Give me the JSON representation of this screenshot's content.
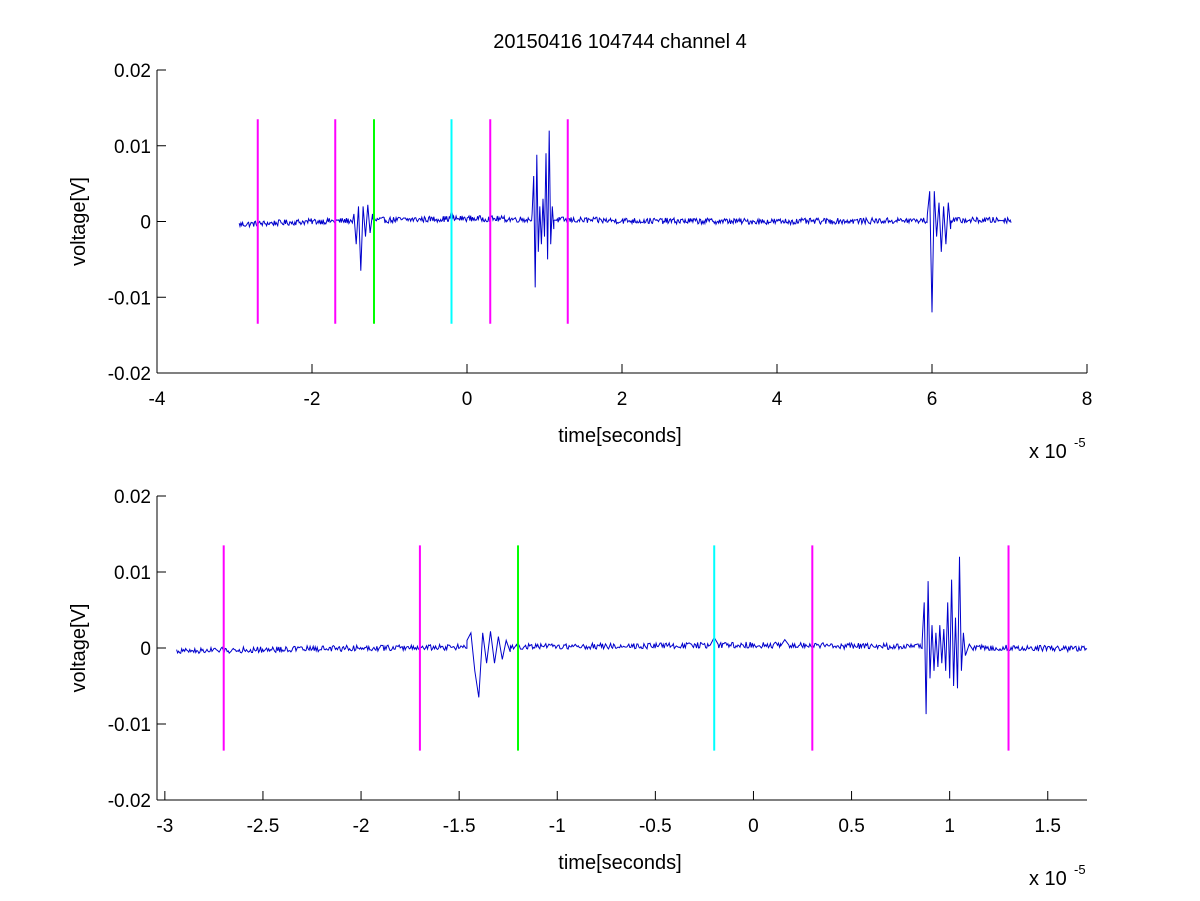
{
  "figure": {
    "title": "20150416 104744 channel 4"
  },
  "chart_data": [
    {
      "type": "line",
      "title": "20150416 104744 channel 4",
      "xlabel": "time[seconds]",
      "ylabel": "voltage[V]",
      "x_multiplier": "x 10",
      "x_multiplier_exponent": "-5",
      "xlim": [
        -4,
        8
      ],
      "ylim": [
        -0.02,
        0.02
      ],
      "x_ticks": [
        -4,
        -2,
        0,
        2,
        4,
        6,
        8
      ],
      "x_tick_labels": [
        "-4",
        "-2",
        "0",
        "2",
        "4",
        "6",
        "8"
      ],
      "y_ticks": [
        0.02,
        0.01,
        0,
        -0.01,
        -0.02
      ],
      "y_tick_labels": [
        "0.02",
        "0.01",
        "0",
        "-0.01",
        "-0.02"
      ],
      "grid": false,
      "series_color": "#0000cc",
      "signal": {
        "x_start": -2.94,
        "x_end": 7.02,
        "baseline": [
          [
            -2.94,
            -0.0004
          ],
          [
            -2.0,
            0.0
          ],
          [
            0.0,
            0.0004
          ],
          [
            2.0,
            0.0001
          ],
          [
            4.0,
            0.0
          ],
          [
            7.02,
            0.0002
          ]
        ],
        "noise_amplitude": 0.0004,
        "bursts": [
          {
            "x": [
              -1.46,
              -1.43,
              -1.4,
              -1.37,
              -1.34,
              -1.31,
              -1.28,
              -1.25,
              -1.22
            ],
            "y": [
              0.001,
              -0.003,
              0.002,
              -0.0065,
              0.002,
              -0.002,
              0.0022,
              -0.0015,
              0.001
            ]
          },
          {
            "x": [
              0.84,
              0.86,
              0.88,
              0.9,
              0.92,
              0.94,
              0.96,
              0.98,
              1.0,
              1.02,
              1.04,
              1.06,
              1.08,
              1.1,
              1.12
            ],
            "y": [
              0.001,
              0.006,
              -0.0087,
              0.0088,
              -0.004,
              0.002,
              -0.003,
              0.003,
              -0.002,
              0.009,
              -0.005,
              0.012,
              -0.003,
              0.002,
              -0.001
            ]
          },
          {
            "x": [
              5.94,
              5.97,
              6.0,
              6.03,
              6.06,
              6.09,
              6.12,
              6.15,
              6.18,
              6.21,
              6.24
            ],
            "y": [
              0.001,
              0.004,
              -0.012,
              0.004,
              -0.002,
              0.0025,
              -0.004,
              0.002,
              -0.003,
              0.0025,
              -0.001
            ]
          },
          {
            "x": [
              -0.22,
              -0.2,
              -0.18
            ],
            "y": [
              0.0004,
              0.0016,
              0.0005
            ]
          }
        ]
      },
      "markers": [
        {
          "x": -2.7,
          "color": "#ff00ff"
        },
        {
          "x": -1.7,
          "color": "#ff00ff"
        },
        {
          "x": -1.2,
          "color": "#00ff00"
        },
        {
          "x": -0.2,
          "color": "#00ffff"
        },
        {
          "x": 0.3,
          "color": "#ff00ff"
        },
        {
          "x": 1.3,
          "color": "#ff00ff"
        }
      ],
      "marker_ylim": [
        -0.0135,
        0.0135
      ]
    },
    {
      "type": "line",
      "xlabel": "time[seconds]",
      "ylabel": "voltage[V]",
      "x_multiplier": "x 10",
      "x_multiplier_exponent": "-5",
      "xlim": [
        -3.04,
        1.7
      ],
      "ylim": [
        -0.02,
        0.02
      ],
      "x_ticks": [
        -3,
        -2.5,
        -2,
        -1.5,
        -1,
        -0.5,
        0,
        0.5,
        1,
        1.5
      ],
      "x_tick_labels": [
        "-3",
        "-2.5",
        "-2",
        "-1.5",
        "-1",
        "-0.5",
        "0",
        "0.5",
        "1",
        "1.5"
      ],
      "y_ticks": [
        0.02,
        0.01,
        0,
        -0.01,
        -0.02
      ],
      "y_tick_labels": [
        "0.02",
        "0.01",
        "0",
        "-0.01",
        "-0.02"
      ],
      "grid": false,
      "series_color": "#0000cc",
      "signal": {
        "x_start": -2.94,
        "x_end": 1.7,
        "baseline": [
          [
            -2.94,
            -0.0004
          ],
          [
            -2.0,
            0.0
          ],
          [
            -0.5,
            0.0003
          ],
          [
            0.0,
            0.0004
          ],
          [
            1.7,
            -0.0001
          ]
        ],
        "noise_amplitude": 0.0004,
        "bursts": [
          {
            "x": [
              -1.46,
              -1.44,
              -1.42,
              -1.4,
              -1.38,
              -1.36,
              -1.34,
              -1.32,
              -1.3,
              -1.28,
              -1.26,
              -1.24
            ],
            "y": [
              0.001,
              0.002,
              -0.003,
              -0.0065,
              0.002,
              -0.002,
              0.0022,
              -0.002,
              0.0015,
              -0.0015,
              0.001,
              -0.0005
            ]
          },
          {
            "x": [
              0.86,
              0.87,
              0.88,
              0.89,
              0.9,
              0.91,
              0.92,
              0.93,
              0.94,
              0.95,
              0.96,
              0.97,
              0.98,
              0.99,
              1.0,
              1.01,
              1.02,
              1.03,
              1.04,
              1.05,
              1.06,
              1.07,
              1.08,
              1.1,
              1.12
            ],
            "y": [
              0.001,
              0.006,
              -0.0087,
              0.0088,
              -0.004,
              0.003,
              -0.003,
              0.002,
              -0.0025,
              0.003,
              -0.002,
              0.0025,
              -0.003,
              0.006,
              -0.004,
              0.009,
              -0.005,
              0.004,
              -0.0053,
              0.012,
              -0.003,
              0.002,
              -0.001,
              0.0005,
              -0.0003
            ]
          },
          {
            "x": [
              -0.22,
              -0.2,
              -0.18
            ],
            "y": [
              0.0004,
              0.0014,
              0.0005
            ]
          },
          {
            "x": [
              0.14,
              0.16,
              0.18
            ],
            "y": [
              0.0003,
              0.0011,
              0.0004
            ]
          }
        ]
      },
      "markers": [
        {
          "x": -2.7,
          "color": "#ff00ff"
        },
        {
          "x": -1.7,
          "color": "#ff00ff"
        },
        {
          "x": -1.2,
          "color": "#00ff00"
        },
        {
          "x": -0.2,
          "color": "#00ffff"
        },
        {
          "x": 0.3,
          "color": "#ff00ff"
        },
        {
          "x": 1.3,
          "color": "#ff00ff"
        }
      ],
      "marker_ylim": [
        -0.0135,
        0.0135
      ]
    }
  ]
}
